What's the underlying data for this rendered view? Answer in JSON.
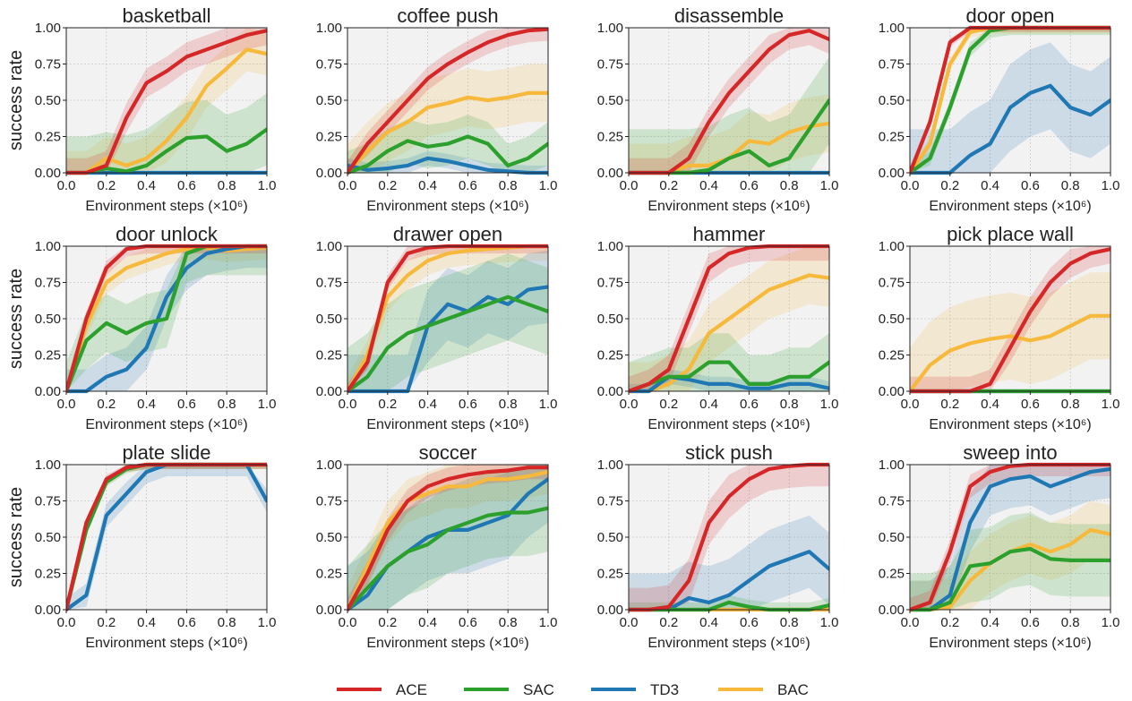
{
  "chart_data": {
    "type": "line",
    "xlabel": "Environment steps (×10⁶)",
    "ylabel": "success rate",
    "xlim": [
      0,
      1
    ],
    "ylim": [
      0,
      1
    ],
    "xticks": [
      "0.0",
      "0.2",
      "0.4",
      "0.6",
      "0.8",
      "1.0"
    ],
    "yticks": [
      "0.00",
      "0.25",
      "0.50",
      "0.75",
      "1.00"
    ],
    "grid": true,
    "legend": {
      "position": "bottom-center",
      "entries": [
        {
          "name": "ACE",
          "color": "#d62728"
        },
        {
          "name": "SAC",
          "color": "#2ca02c"
        },
        {
          "name": "TD3",
          "color": "#1f77b4"
        },
        {
          "name": "BAC",
          "color": "#f6b93b"
        }
      ]
    },
    "x": [
      0.0,
      0.1,
      0.2,
      0.3,
      0.4,
      0.5,
      0.6,
      0.7,
      0.8,
      0.9,
      1.0
    ],
    "panels": [
      {
        "title": "basketball",
        "series": [
          {
            "name": "ACE",
            "values": [
              0,
              0,
              0.05,
              0.38,
              0.62,
              0.7,
              0.8,
              0.85,
              0.9,
              0.95,
              0.98
            ],
            "spread": 0.1
          },
          {
            "name": "SAC",
            "values": [
              0,
              0,
              0.03,
              0.01,
              0.05,
              0.15,
              0.24,
              0.25,
              0.15,
              0.2,
              0.3
            ],
            "spread": 0.25
          },
          {
            "name": "TD3",
            "values": [
              0,
              0,
              0,
              0,
              0,
              0,
              0,
              0,
              0,
              0,
              0
            ],
            "spread": 0.01
          },
          {
            "name": "BAC",
            "values": [
              0,
              0,
              0.1,
              0.05,
              0.1,
              0.22,
              0.38,
              0.6,
              0.72,
              0.85,
              0.82
            ],
            "spread": 0.15
          }
        ]
      },
      {
        "title": "coffee push",
        "series": [
          {
            "name": "ACE",
            "values": [
              0,
              0.2,
              0.35,
              0.5,
              0.65,
              0.75,
              0.83,
              0.9,
              0.95,
              0.98,
              0.99
            ],
            "spread": 0.08
          },
          {
            "name": "SAC",
            "values": [
              0,
              0.05,
              0.15,
              0.22,
              0.18,
              0.2,
              0.25,
              0.2,
              0.05,
              0.1,
              0.2
            ],
            "spread": 0.15
          },
          {
            "name": "TD3",
            "values": [
              0.05,
              0.02,
              0.03,
              0.05,
              0.1,
              0.08,
              0.05,
              0.02,
              0.01,
              0,
              0
            ],
            "spread": 0.05
          },
          {
            "name": "BAC",
            "values": [
              0,
              0.15,
              0.28,
              0.35,
              0.45,
              0.48,
              0.52,
              0.5,
              0.52,
              0.55,
              0.55
            ],
            "spread": 0.2
          }
        ]
      },
      {
        "title": "disassemble",
        "series": [
          {
            "name": "ACE",
            "values": [
              0,
              0,
              0,
              0.1,
              0.35,
              0.55,
              0.7,
              0.85,
              0.95,
              0.98,
              0.92
            ],
            "spread": 0.1
          },
          {
            "name": "SAC",
            "values": [
              0,
              0,
              0,
              0,
              0.02,
              0.1,
              0.15,
              0.05,
              0.1,
              0.3,
              0.5
            ],
            "spread": 0.3
          },
          {
            "name": "TD3",
            "values": [
              0,
              0,
              0,
              0,
              0,
              0,
              0,
              0,
              0,
              0,
              0
            ],
            "spread": 0.01
          },
          {
            "name": "BAC",
            "values": [
              0,
              0,
              0,
              0.05,
              0.05,
              0.1,
              0.22,
              0.2,
              0.28,
              0.32,
              0.34
            ],
            "spread": 0.2
          }
        ]
      },
      {
        "title": "door open",
        "series": [
          {
            "name": "ACE",
            "values": [
              0,
              0.35,
              0.9,
              1,
              1,
              1,
              1,
              1,
              1,
              1,
              1
            ],
            "spread": 0.03
          },
          {
            "name": "SAC",
            "values": [
              0,
              0.1,
              0.45,
              0.85,
              0.98,
              1,
              1,
              1,
              1,
              1,
              1
            ],
            "spread": 0.05
          },
          {
            "name": "TD3",
            "values": [
              0,
              0,
              0,
              0.12,
              0.2,
              0.45,
              0.55,
              0.6,
              0.45,
              0.4,
              0.5
            ],
            "spread": 0.3
          },
          {
            "name": "BAC",
            "values": [
              0,
              0.2,
              0.75,
              0.97,
              1,
              1,
              1,
              1,
              1,
              1,
              1
            ],
            "spread": 0.04
          }
        ]
      },
      {
        "title": "door unlock",
        "series": [
          {
            "name": "ACE",
            "values": [
              0,
              0.5,
              0.85,
              0.98,
              1,
              1,
              1,
              1,
              1,
              1,
              1
            ],
            "spread": 0.05
          },
          {
            "name": "SAC",
            "values": [
              0,
              0.35,
              0.47,
              0.4,
              0.47,
              0.5,
              0.95,
              1,
              1,
              1,
              1
            ],
            "spread": 0.2
          },
          {
            "name": "TD3",
            "values": [
              0,
              0,
              0.1,
              0.15,
              0.3,
              0.65,
              0.85,
              0.95,
              0.98,
              1,
              1
            ],
            "spread": 0.15
          },
          {
            "name": "BAC",
            "values": [
              0,
              0.45,
              0.75,
              0.85,
              0.9,
              0.95,
              0.98,
              0.99,
              0.97,
              0.98,
              0.99
            ],
            "spread": 0.08
          }
        ]
      },
      {
        "title": "drawer open",
        "series": [
          {
            "name": "ACE",
            "values": [
              0,
              0.2,
              0.75,
              0.95,
              0.99,
              1,
              1,
              1,
              1,
              1,
              1
            ],
            "spread": 0.05
          },
          {
            "name": "SAC",
            "values": [
              0,
              0.1,
              0.3,
              0.4,
              0.45,
              0.5,
              0.55,
              0.6,
              0.65,
              0.6,
              0.55
            ],
            "spread": 0.3
          },
          {
            "name": "TD3",
            "values": [
              0,
              0,
              0,
              0,
              0.45,
              0.6,
              0.55,
              0.65,
              0.6,
              0.7,
              0.72
            ],
            "spread": 0.25
          },
          {
            "name": "BAC",
            "values": [
              0,
              0.25,
              0.65,
              0.8,
              0.9,
              0.95,
              0.97,
              0.98,
              0.99,
              1,
              1
            ],
            "spread": 0.1
          }
        ]
      },
      {
        "title": "hammer",
        "series": [
          {
            "name": "ACE",
            "values": [
              0,
              0.05,
              0.15,
              0.5,
              0.85,
              0.95,
              0.99,
              1,
              1,
              1,
              1
            ],
            "spread": 0.1
          },
          {
            "name": "SAC",
            "values": [
              0,
              0.05,
              0.1,
              0.1,
              0.2,
              0.2,
              0.05,
              0.05,
              0.1,
              0.1,
              0.2
            ],
            "spread": 0.2
          },
          {
            "name": "TD3",
            "values": [
              0,
              0,
              0.1,
              0.08,
              0.05,
              0.05,
              0.02,
              0.02,
              0.05,
              0.05,
              0.02
            ],
            "spread": 0.05
          },
          {
            "name": "BAC",
            "values": [
              0,
              0,
              0.05,
              0.15,
              0.4,
              0.5,
              0.6,
              0.7,
              0.75,
              0.8,
              0.78
            ],
            "spread": 0.2
          }
        ]
      },
      {
        "title": "pick place wall",
        "series": [
          {
            "name": "ACE",
            "values": [
              0,
              0,
              0,
              0,
              0.05,
              0.3,
              0.55,
              0.75,
              0.88,
              0.95,
              0.98
            ],
            "spread": 0.1
          },
          {
            "name": "SAC",
            "values": [
              0,
              0,
              0,
              0,
              0,
              0,
              0,
              0,
              0,
              0,
              0
            ],
            "spread": 0.01
          },
          {
            "name": "TD3",
            "values": [
              0,
              0,
              0,
              0,
              0,
              0,
              0,
              0,
              0,
              0,
              0
            ],
            "spread": 0.01
          },
          {
            "name": "BAC",
            "values": [
              0,
              0.18,
              0.28,
              0.33,
              0.36,
              0.38,
              0.35,
              0.38,
              0.45,
              0.52,
              0.52
            ],
            "spread": 0.3
          }
        ]
      },
      {
        "title": "plate slide",
        "series": [
          {
            "name": "ACE",
            "values": [
              0,
              0.6,
              0.9,
              0.98,
              1,
              1,
              1,
              1,
              1,
              1,
              1
            ],
            "spread": 0.03
          },
          {
            "name": "SAC",
            "values": [
              0,
              0.55,
              0.88,
              0.97,
              1,
              1,
              1,
              1,
              1,
              1,
              1
            ],
            "spread": 0.03
          },
          {
            "name": "TD3",
            "values": [
              0,
              0.1,
              0.65,
              0.8,
              0.95,
              1,
              1,
              1,
              1,
              1,
              0.75
            ],
            "spread": 0.08
          },
          {
            "name": "BAC",
            "values": [
              0,
              0.58,
              0.88,
              0.98,
              1,
              1,
              1,
              1,
              1,
              1,
              1
            ],
            "spread": 0.03
          }
        ]
      },
      {
        "title": "soccer",
        "series": [
          {
            "name": "ACE",
            "values": [
              0,
              0.25,
              0.55,
              0.75,
              0.85,
              0.9,
              0.93,
              0.95,
              0.96,
              0.98,
              0.98
            ],
            "spread": 0.08
          },
          {
            "name": "SAC",
            "values": [
              0,
              0.15,
              0.3,
              0.4,
              0.45,
              0.55,
              0.6,
              0.65,
              0.67,
              0.67,
              0.7
            ],
            "spread": 0.3
          },
          {
            "name": "TD3",
            "values": [
              0,
              0.1,
              0.3,
              0.4,
              0.5,
              0.55,
              0.55,
              0.6,
              0.65,
              0.8,
              0.9
            ],
            "spread": 0.3
          },
          {
            "name": "BAC",
            "values": [
              0,
              0.3,
              0.6,
              0.75,
              0.8,
              0.85,
              0.85,
              0.9,
              0.9,
              0.92,
              0.95
            ],
            "spread": 0.15
          }
        ]
      },
      {
        "title": "stick push",
        "series": [
          {
            "name": "ACE",
            "values": [
              0,
              0,
              0.02,
              0.2,
              0.6,
              0.78,
              0.9,
              0.97,
              0.99,
              1,
              1
            ],
            "spread": 0.15
          },
          {
            "name": "SAC",
            "values": [
              0,
              0,
              0,
              0,
              0,
              0.05,
              0.02,
              0,
              0,
              0,
              0.03
            ],
            "spread": 0.05
          },
          {
            "name": "TD3",
            "values": [
              0,
              0,
              0,
              0.08,
              0.05,
              0.1,
              0.2,
              0.3,
              0.35,
              0.4,
              0.28
            ],
            "spread": 0.25
          },
          {
            "name": "BAC",
            "values": [
              0,
              0,
              0,
              0,
              0,
              0,
              0,
              0,
              0,
              0,
              0
            ],
            "spread": 0.01
          }
        ]
      },
      {
        "title": "sweep into",
        "series": [
          {
            "name": "ACE",
            "values": [
              0,
              0.05,
              0.4,
              0.85,
              0.95,
              0.99,
              1,
              1,
              1,
              1,
              1
            ],
            "spread": 0.08
          },
          {
            "name": "SAC",
            "values": [
              0,
              0,
              0.05,
              0.3,
              0.32,
              0.4,
              0.42,
              0.35,
              0.34,
              0.34,
              0.34
            ],
            "spread": 0.25
          },
          {
            "name": "TD3",
            "values": [
              0,
              0,
              0.1,
              0.6,
              0.85,
              0.9,
              0.92,
              0.85,
              0.9,
              0.95,
              0.97
            ],
            "spread": 0.2
          },
          {
            "name": "BAC",
            "values": [
              0,
              0,
              0.02,
              0.2,
              0.32,
              0.4,
              0.45,
              0.4,
              0.45,
              0.55,
              0.52
            ],
            "spread": 0.2
          }
        ]
      }
    ]
  }
}
